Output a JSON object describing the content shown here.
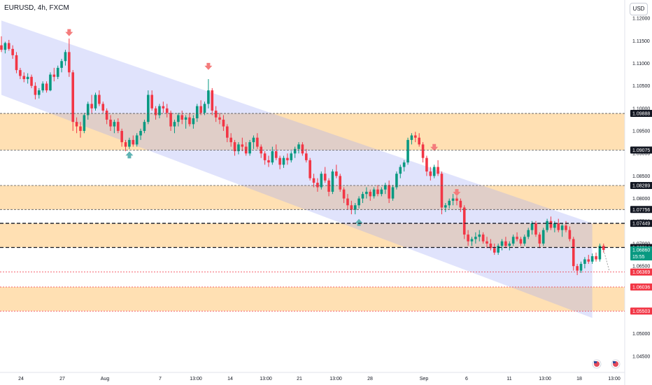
{
  "header": {
    "symbol": "EURUSD, 4h, FXCM"
  },
  "currency_button": "USD",
  "chart_data": {
    "type": "candlestick",
    "symbol": "EURUSD",
    "timeframe": "4h",
    "source": "FXCM",
    "ylim": [
      1.0425,
      1.1225
    ],
    "y_ticks": [
      "1.12000",
      "1.11500",
      "1.11000",
      "1.10500",
      "1.10000",
      "1.09500",
      "1.09000",
      "1.08500",
      "1.08000",
      "1.07500",
      "1.07000",
      "1.06500",
      "1.06000",
      "1.05500",
      "1.05000",
      "1.04500"
    ],
    "x_ticks": [
      "24",
      "27",
      "Aug",
      "7",
      "13:00",
      "14",
      "13:00",
      "21",
      "13:00",
      "28",
      "Sep",
      "6",
      "11",
      "13:00",
      "18",
      "13:00"
    ],
    "price_labels": [
      {
        "text": "1.09888",
        "value": 1.09888,
        "style": "black"
      },
      {
        "text": "1.09075",
        "value": 1.09075,
        "style": "black"
      },
      {
        "text": "1.08289",
        "value": 1.08289,
        "style": "black"
      },
      {
        "text": "1.07756",
        "value": 1.07756,
        "style": "black"
      },
      {
        "text": "1.07449",
        "value": 1.07449,
        "style": "black"
      },
      {
        "text": "1.06914",
        "value": 1.06914,
        "style": "black"
      },
      {
        "text": "1.06860",
        "value": 1.0686,
        "style": "green",
        "sub": "15:55"
      },
      {
        "text": "1.06369",
        "value": 1.06369,
        "style": "red"
      },
      {
        "text": "1.06036",
        "value": 1.06036,
        "style": "red"
      },
      {
        "text": "1.05503",
        "value": 1.05503,
        "style": "red"
      }
    ],
    "zones": [
      {
        "from": 1.09075,
        "to": 1.09888
      },
      {
        "from": 1.07756,
        "to": 1.08289
      },
      {
        "from": 1.06914,
        "to": 1.07449
      },
      {
        "from": 1.05503,
        "to": 1.06036
      }
    ],
    "channel": {
      "upper": [
        {
          "bar": 0,
          "value": 1.1195
        },
        {
          "bar": 157,
          "value": 1.0745
        }
      ],
      "lower": [
        {
          "bar": 0,
          "value": 1.103
        },
        {
          "bar": 157,
          "value": 1.0535
        }
      ]
    },
    "markers": [
      {
        "bar": 18,
        "value": 1.1165,
        "dir": "down",
        "color": "#f47c7c"
      },
      {
        "bar": 34,
        "value": 1.09,
        "dir": "up",
        "color": "#5fb3b3"
      },
      {
        "bar": 55,
        "value": 1.109,
        "dir": "down",
        "color": "#f47c7c"
      },
      {
        "bar": 95,
        "value": 1.075,
        "dir": "up",
        "color": "#5fb3b3"
      },
      {
        "bar": 115,
        "value": 1.091,
        "dir": "down",
        "color": "#f47c7c"
      },
      {
        "bar": 121,
        "value": 1.081,
        "dir": "down",
        "color": "#f47c7c"
      }
    ],
    "candles": [
      [
        1.114,
        1.116,
        1.1125,
        1.113
      ],
      [
        1.113,
        1.1148,
        1.1122,
        1.1145
      ],
      [
        1.1145,
        1.1152,
        1.1128,
        1.1132
      ],
      [
        1.1132,
        1.114,
        1.111,
        1.1118
      ],
      [
        1.1118,
        1.1125,
        1.1078,
        1.1085
      ],
      [
        1.1085,
        1.109,
        1.1065,
        1.1072
      ],
      [
        1.1072,
        1.108,
        1.1058,
        1.1065
      ],
      [
        1.1065,
        1.1078,
        1.1055,
        1.107
      ],
      [
        1.107,
        1.1075,
        1.1045,
        1.105
      ],
      [
        1.105,
        1.1058,
        1.102,
        1.103
      ],
      [
        1.103,
        1.1045,
        1.1022,
        1.104
      ],
      [
        1.104,
        1.106,
        1.1035,
        1.1055
      ],
      [
        1.1055,
        1.106,
        1.1035,
        1.104
      ],
      [
        1.104,
        1.108,
        1.1038,
        1.1075
      ],
      [
        1.1075,
        1.109,
        1.106,
        1.107
      ],
      [
        1.107,
        1.1095,
        1.1065,
        1.109
      ],
      [
        1.109,
        1.111,
        1.108,
        1.1105
      ],
      [
        1.1105,
        1.113,
        1.1095,
        1.1125
      ],
      [
        1.1125,
        1.1155,
        1.107,
        1.108
      ],
      [
        1.108,
        1.1085,
        1.095,
        1.097
      ],
      [
        1.097,
        1.098,
        1.0945,
        1.096
      ],
      [
        1.096,
        1.097,
        1.0935,
        1.095
      ],
      [
        1.095,
        1.099,
        1.0945,
        1.0985
      ],
      [
        1.0985,
        1.1015,
        1.0975,
        1.101
      ],
      [
        1.101,
        1.103,
        1.099,
        1.1
      ],
      [
        1.1,
        1.1035,
        1.0995,
        1.103
      ],
      [
        1.103,
        1.104,
        1.1005,
        1.101
      ],
      [
        1.101,
        1.1015,
        1.099,
        1.0995
      ],
      [
        1.0995,
        1.1,
        1.0965,
        1.0975
      ],
      [
        1.0975,
        1.0985,
        1.095,
        1.096
      ],
      [
        1.096,
        1.0975,
        1.0945,
        1.097
      ],
      [
        1.097,
        1.0978,
        1.0945,
        1.095
      ],
      [
        1.095,
        1.0955,
        1.0915,
        1.0925
      ],
      [
        1.0925,
        1.093,
        1.0905,
        1.0915
      ],
      [
        1.0915,
        1.0935,
        1.091,
        1.093
      ],
      [
        1.093,
        1.094,
        1.0915,
        1.092
      ],
      [
        1.092,
        1.0945,
        1.0915,
        1.094
      ],
      [
        1.094,
        1.0955,
        1.093,
        1.095
      ],
      [
        1.095,
        1.0975,
        1.0945,
        1.097
      ],
      [
        1.097,
        1.104,
        1.0965,
        1.103
      ],
      [
        1.103,
        1.104,
        1.0995,
        1.1
      ],
      [
        1.1,
        1.1005,
        1.0975,
        1.0985
      ],
      [
        1.0985,
        1.101,
        1.0978,
        1.1005
      ],
      [
        1.1005,
        1.1015,
        1.099,
        1.1
      ],
      [
        1.1,
        1.101,
        1.098,
        1.099
      ],
      [
        1.099,
        1.0995,
        1.095,
        1.096
      ],
      [
        1.096,
        1.0975,
        1.0945,
        1.097
      ],
      [
        1.097,
        1.099,
        1.096,
        1.0985
      ],
      [
        1.0985,
        1.0995,
        1.0965,
        1.0975
      ],
      [
        1.0975,
        1.0985,
        1.0955,
        1.098
      ],
      [
        1.098,
        1.099,
        1.096,
        1.0965
      ],
      [
        1.0965,
        1.0985,
        1.0955,
        1.0978
      ],
      [
        1.0978,
        1.101,
        1.097,
        1.1005
      ],
      [
        1.1005,
        1.1018,
        1.0985,
        1.099
      ],
      [
        1.099,
        1.1015,
        1.0985,
        1.101
      ],
      [
        1.101,
        1.1065,
        1.1,
        1.104
      ],
      [
        1.104,
        1.1045,
        1.0985,
        1.0995
      ],
      [
        1.0995,
        1.1005,
        1.097,
        1.098
      ],
      [
        1.098,
        1.099,
        1.0965,
        1.0975
      ],
      [
        1.0975,
        1.0985,
        1.095,
        1.096
      ],
      [
        1.096,
        1.0965,
        1.0925,
        1.0935
      ],
      [
        1.0935,
        1.0945,
        1.0915,
        1.0925
      ],
      [
        1.0925,
        1.093,
        1.0895,
        1.0905
      ],
      [
        1.0905,
        1.0925,
        1.0898,
        1.092
      ],
      [
        1.092,
        1.0935,
        1.0905,
        1.0915
      ],
      [
        1.0915,
        1.0925,
        1.0895,
        1.09
      ],
      [
        1.09,
        1.093,
        1.0895,
        1.0925
      ],
      [
        1.0925,
        1.094,
        1.091,
        1.0935
      ],
      [
        1.0935,
        1.0945,
        1.091,
        1.0915
      ],
      [
        1.0915,
        1.092,
        1.089,
        1.09
      ],
      [
        1.09,
        1.0905,
        1.0875,
        1.0885
      ],
      [
        1.0885,
        1.0895,
        1.087,
        1.088
      ],
      [
        1.088,
        1.0915,
        1.0875,
        1.0905
      ],
      [
        1.0905,
        1.092,
        1.0885,
        1.089
      ],
      [
        1.089,
        1.0895,
        1.0865,
        1.0875
      ],
      [
        1.0875,
        1.0895,
        1.0868,
        1.089
      ],
      [
        1.089,
        1.09,
        1.0875,
        1.0885
      ],
      [
        1.0885,
        1.0905,
        1.088,
        1.09
      ],
      [
        1.09,
        1.0915,
        1.089,
        1.091
      ],
      [
        1.091,
        1.0925,
        1.09,
        1.092
      ],
      [
        1.092,
        1.0925,
        1.0895,
        1.09
      ],
      [
        1.09,
        1.091,
        1.088,
        1.0885
      ],
      [
        1.0885,
        1.089,
        1.084,
        1.0845
      ],
      [
        1.0845,
        1.0855,
        1.0825,
        1.0835
      ],
      [
        1.0835,
        1.0845,
        1.0815,
        1.0825
      ],
      [
        1.0825,
        1.086,
        1.082,
        1.0855
      ],
      [
        1.0855,
        1.087,
        1.0835,
        1.084
      ],
      [
        1.084,
        1.0845,
        1.0805,
        1.0815
      ],
      [
        1.0815,
        1.0865,
        1.081,
        1.086
      ],
      [
        1.086,
        1.0875,
        1.0845,
        1.085
      ],
      [
        1.085,
        1.0855,
        1.0815,
        1.082
      ],
      [
        1.082,
        1.0825,
        1.079,
        1.08
      ],
      [
        1.08,
        1.081,
        1.0775,
        1.0785
      ],
      [
        1.0785,
        1.0795,
        1.0765,
        1.0775
      ],
      [
        1.0775,
        1.079,
        1.0765,
        1.0785
      ],
      [
        1.0785,
        1.0805,
        1.0778,
        1.08
      ],
      [
        1.08,
        1.0815,
        1.079,
        1.081
      ],
      [
        1.081,
        1.0825,
        1.08,
        1.0815
      ],
      [
        1.0815,
        1.082,
        1.0795,
        1.0805
      ],
      [
        1.0805,
        1.0825,
        1.08,
        1.082
      ],
      [
        1.082,
        1.083,
        1.0805,
        1.081
      ],
      [
        1.081,
        1.0825,
        1.0805,
        1.082
      ],
      [
        1.082,
        1.0835,
        1.081,
        1.083
      ],
      [
        1.083,
        1.084,
        1.079,
        1.08
      ],
      [
        1.08,
        1.083,
        1.0795,
        1.0825
      ],
      [
        1.0825,
        1.086,
        1.082,
        1.0855
      ],
      [
        1.0855,
        1.0875,
        1.0845,
        1.087
      ],
      [
        1.087,
        1.0885,
        1.086,
        1.088
      ],
      [
        1.088,
        1.0935,
        1.0875,
        1.093
      ],
      [
        1.093,
        1.0945,
        1.092,
        1.094
      ],
      [
        1.094,
        1.0948,
        1.0925,
        1.0935
      ],
      [
        1.0935,
        1.0945,
        1.0915,
        1.092
      ],
      [
        1.092,
        1.0925,
        1.088,
        1.089
      ],
      [
        1.089,
        1.0895,
        1.085,
        1.086
      ],
      [
        1.086,
        1.087,
        1.084,
        1.085
      ],
      [
        1.085,
        1.0875,
        1.0845,
        1.087
      ],
      [
        1.087,
        1.0885,
        1.085,
        1.0855
      ],
      [
        1.0855,
        1.086,
        1.0765,
        1.078
      ],
      [
        1.078,
        1.079,
        1.077,
        1.0785
      ],
      [
        1.0785,
        1.08,
        1.0778,
        1.0795
      ],
      [
        1.0795,
        1.081,
        1.0785,
        1.08
      ],
      [
        1.08,
        1.0805,
        1.0785,
        1.0795
      ],
      [
        1.0795,
        1.08,
        1.077,
        1.078
      ],
      [
        1.078,
        1.0785,
        1.071,
        1.072
      ],
      [
        1.072,
        1.073,
        1.0695,
        1.0705
      ],
      [
        1.0705,
        1.0715,
        1.0695,
        1.071
      ],
      [
        1.071,
        1.0725,
        1.07,
        1.0715
      ],
      [
        1.0715,
        1.073,
        1.0705,
        1.072
      ],
      [
        1.072,
        1.0725,
        1.07,
        1.0705
      ],
      [
        1.0705,
        1.0715,
        1.069,
        1.07
      ],
      [
        1.07,
        1.071,
        1.0685,
        1.069
      ],
      [
        1.069,
        1.07,
        1.0675,
        1.068
      ],
      [
        1.068,
        1.07,
        1.0675,
        1.0695
      ],
      [
        1.0695,
        1.071,
        1.0685,
        1.0705
      ],
      [
        1.0705,
        1.0715,
        1.069,
        1.0695
      ],
      [
        1.0695,
        1.0705,
        1.0685,
        1.07
      ],
      [
        1.07,
        1.072,
        1.0695,
        1.0715
      ],
      [
        1.0715,
        1.0725,
        1.0705,
        1.071
      ],
      [
        1.071,
        1.0715,
        1.0695,
        1.07
      ],
      [
        1.07,
        1.072,
        1.0695,
        1.0715
      ],
      [
        1.0715,
        1.0735,
        1.071,
        1.073
      ],
      [
        1.073,
        1.075,
        1.072,
        1.0745
      ],
      [
        1.0745,
        1.075,
        1.0715,
        1.072
      ],
      [
        1.072,
        1.0725,
        1.069,
        1.07
      ],
      [
        1.07,
        1.0735,
        1.0695,
        1.073
      ],
      [
        1.073,
        1.0755,
        1.0725,
        1.075
      ],
      [
        1.075,
        1.076,
        1.073,
        1.0735
      ],
      [
        1.0735,
        1.075,
        1.0725,
        1.0745
      ],
      [
        1.0745,
        1.0755,
        1.0725,
        1.073
      ],
      [
        1.073,
        1.0745,
        1.0715,
        1.074
      ],
      [
        1.074,
        1.075,
        1.0725,
        1.073
      ],
      [
        1.073,
        1.0738,
        1.0705,
        1.071
      ],
      [
        1.071,
        1.0715,
        1.064,
        1.065
      ],
      [
        1.065,
        1.0655,
        1.063,
        1.064
      ],
      [
        1.064,
        1.066,
        1.0635,
        1.0655
      ],
      [
        1.0655,
        1.067,
        1.0645,
        1.0665
      ],
      [
        1.0665,
        1.0675,
        1.0655,
        1.066
      ],
      [
        1.066,
        1.0678,
        1.0655,
        1.0672
      ],
      [
        1.0672,
        1.068,
        1.066,
        1.0665
      ],
      [
        1.0665,
        1.07,
        1.066,
        1.0695
      ],
      [
        1.0695,
        1.07,
        1.068,
        1.0686
      ]
    ]
  }
}
